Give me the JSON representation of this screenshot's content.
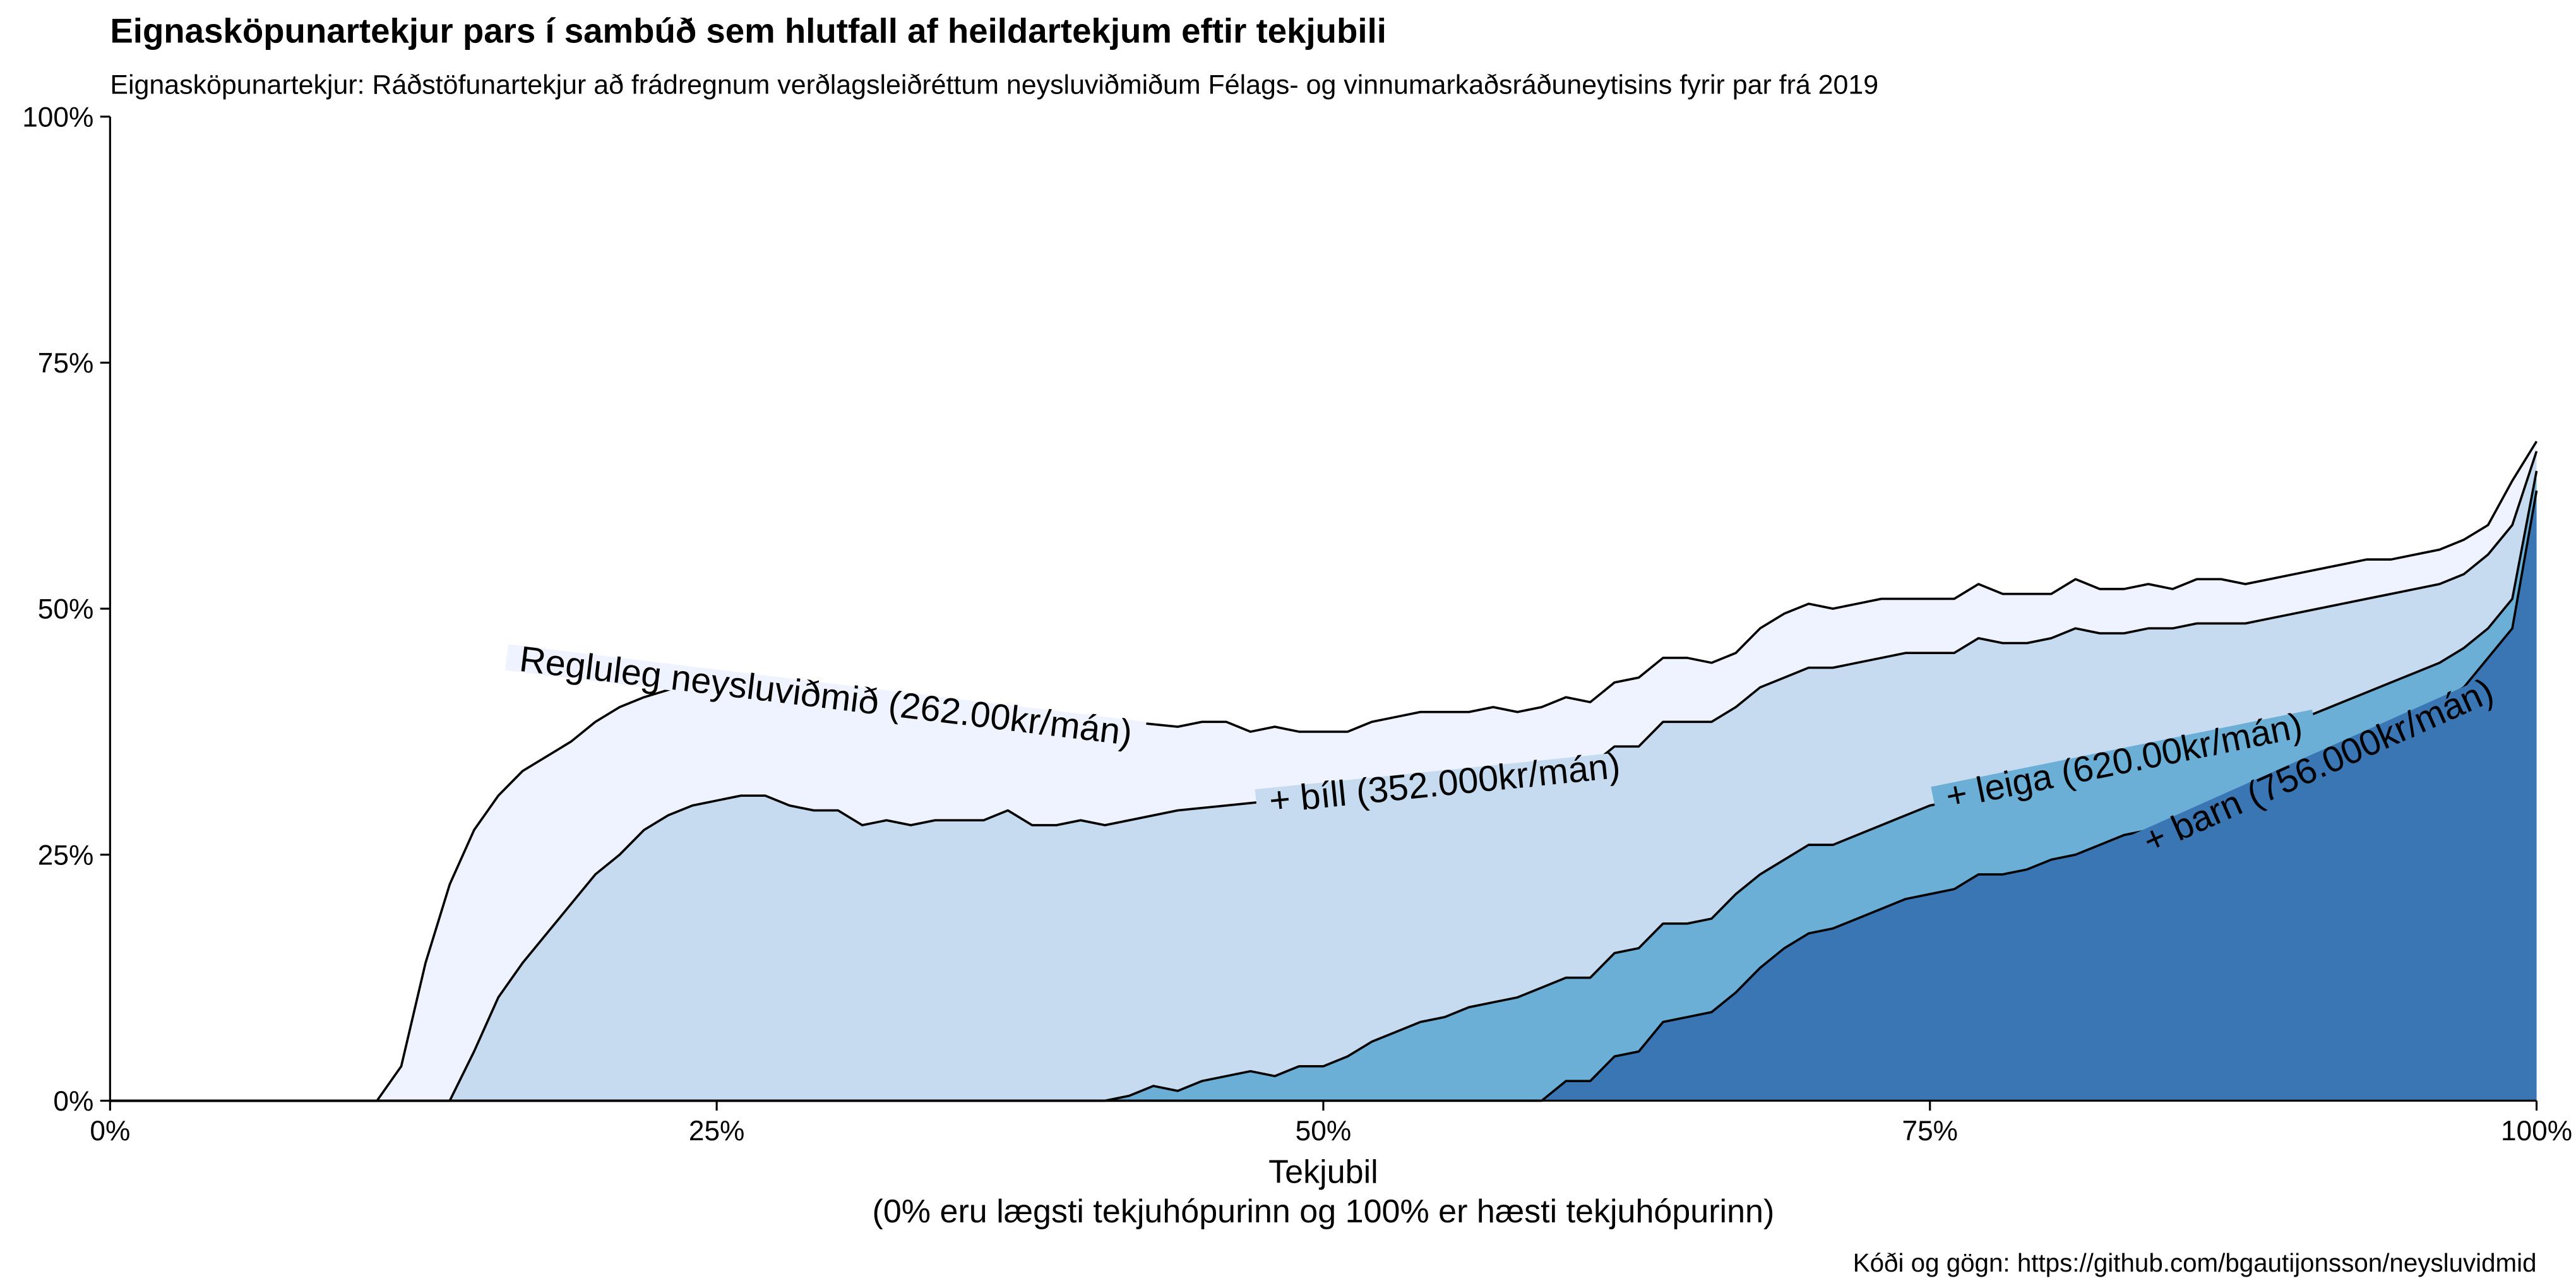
{
  "chart_data": {
    "type": "area",
    "stacked": true,
    "title": "Eignasköpunartekjur pars í sambúð sem hlutfall af heildartekjum eftir tekjubili",
    "subtitle": "Eignasköpunartekjur: Ráðstöfunartekjur að frádregnum verðlagsleiðréttum neysluviðmiðum Félags- og vinnumarkaðsráðuneytisins fyrir par frá 2019",
    "xlabel": "Tekjubil",
    "xlabel_note": "(0% eru lægsti tekjuhópurinn og 100% er hæsti tekjuhópurinn)",
    "caption": "Kóði og gögn: https://github.com/bgautijonsson/neysluvidmid",
    "xlim": [
      0,
      100
    ],
    "ylim": [
      0,
      100
    ],
    "x_ticks": [
      0,
      25,
      50,
      75,
      100
    ],
    "y_ticks": [
      0,
      25,
      50,
      75,
      100
    ],
    "x_tick_labels": [
      "0%",
      "25%",
      "50%",
      "75%",
      "100%"
    ],
    "y_tick_labels": [
      "0%",
      "25%",
      "50%",
      "75%",
      "100%"
    ],
    "grid": false,
    "legend": "none",
    "series": [
      {
        "name": "Regluleg neysluviðmið (262.00kr/mán)",
        "color": "#eff3ff",
        "label_at": 29.5,
        "points": [
          [
            0,
            0
          ],
          [
            11,
            0
          ],
          [
            12,
            3.5
          ],
          [
            13,
            14
          ],
          [
            14,
            22
          ],
          [
            15,
            27.5
          ],
          [
            16,
            31
          ],
          [
            17,
            33.5
          ],
          [
            19,
            36.5
          ],
          [
            20,
            38.5
          ],
          [
            21,
            40
          ],
          [
            22,
            41
          ],
          [
            24,
            42.5
          ],
          [
            26,
            42.5
          ],
          [
            28,
            41.5
          ],
          [
            30,
            41
          ],
          [
            32,
            40.5
          ],
          [
            34,
            40
          ],
          [
            36,
            39.5
          ],
          [
            38,
            39
          ],
          [
            40,
            39
          ],
          [
            42,
            38.5
          ],
          [
            44,
            38
          ],
          [
            45,
            38.5
          ],
          [
            46,
            38.5
          ],
          [
            47,
            37.5
          ],
          [
            48,
            38
          ],
          [
            49,
            37.5
          ],
          [
            50,
            37.5
          ],
          [
            51,
            37.5
          ],
          [
            52,
            38.5
          ],
          [
            53,
            39
          ],
          [
            54,
            39.5
          ],
          [
            55,
            39.5
          ],
          [
            56,
            39.5
          ],
          [
            57,
            40
          ],
          [
            58,
            39.5
          ],
          [
            59,
            40
          ],
          [
            60,
            41
          ],
          [
            61,
            40.5
          ],
          [
            62,
            42.5
          ],
          [
            63,
            43
          ],
          [
            64,
            45
          ],
          [
            65,
            45
          ],
          [
            66,
            44.5
          ],
          [
            67,
            45.5
          ],
          [
            68,
            48
          ],
          [
            69,
            49.5
          ],
          [
            70,
            50.5
          ],
          [
            71,
            50
          ],
          [
            72,
            50.5
          ],
          [
            73,
            51
          ],
          [
            75,
            51
          ],
          [
            76,
            51
          ],
          [
            77,
            52.5
          ],
          [
            78,
            51.5
          ],
          [
            79,
            51.5
          ],
          [
            80,
            51.5
          ],
          [
            81,
            53
          ],
          [
            82,
            52
          ],
          [
            83,
            52
          ],
          [
            84,
            52.5
          ],
          [
            85,
            52
          ],
          [
            86,
            53
          ],
          [
            87,
            53
          ],
          [
            88,
            52.5
          ],
          [
            89,
            53
          ],
          [
            90,
            53.5
          ],
          [
            91,
            54
          ],
          [
            92,
            54.5
          ],
          [
            93,
            55
          ],
          [
            94,
            55
          ],
          [
            95,
            55.5
          ],
          [
            96,
            56
          ],
          [
            97,
            57
          ],
          [
            98,
            58.5
          ],
          [
            99,
            63
          ],
          [
            100,
            67
          ]
        ]
      },
      {
        "name": "+ bíll (352.000kr/mán)",
        "color": "#c6dbef",
        "label_at": 55,
        "points": [
          [
            0,
            0
          ],
          [
            14,
            0
          ],
          [
            15,
            5
          ],
          [
            16,
            10.5
          ],
          [
            17,
            14
          ],
          [
            18,
            17
          ],
          [
            19,
            20
          ],
          [
            20,
            23
          ],
          [
            21,
            25
          ],
          [
            22,
            27.5
          ],
          [
            23,
            29
          ],
          [
            24,
            30
          ],
          [
            25,
            30.5
          ],
          [
            26,
            31
          ],
          [
            27,
            31
          ],
          [
            28,
            30
          ],
          [
            29,
            29.5
          ],
          [
            30,
            29.5
          ],
          [
            31,
            28
          ],
          [
            32,
            28.5
          ],
          [
            33,
            28
          ],
          [
            34,
            28.5
          ],
          [
            35,
            28.5
          ],
          [
            36,
            28.5
          ],
          [
            37,
            29.5
          ],
          [
            38,
            28
          ],
          [
            39,
            28
          ],
          [
            40,
            28.5
          ],
          [
            41,
            28
          ],
          [
            42,
            28.5
          ],
          [
            44,
            29.5
          ],
          [
            46,
            30
          ],
          [
            48,
            30.5
          ],
          [
            50,
            31
          ],
          [
            52,
            31.5
          ],
          [
            54,
            32
          ],
          [
            56,
            32.5
          ],
          [
            58,
            33
          ],
          [
            60,
            34.5
          ],
          [
            61,
            34
          ],
          [
            62,
            36
          ],
          [
            63,
            36
          ],
          [
            64,
            38.5
          ],
          [
            65,
            38.5
          ],
          [
            66,
            38.5
          ],
          [
            67,
            40
          ],
          [
            68,
            42
          ],
          [
            69,
            43
          ],
          [
            70,
            44
          ],
          [
            71,
            44
          ],
          [
            72,
            44.5
          ],
          [
            73,
            45
          ],
          [
            74,
            45.5
          ],
          [
            75,
            45.5
          ],
          [
            76,
            45.5
          ],
          [
            77,
            47
          ],
          [
            78,
            46.5
          ],
          [
            79,
            46.5
          ],
          [
            80,
            47
          ],
          [
            81,
            48
          ],
          [
            82,
            47.5
          ],
          [
            83,
            47.5
          ],
          [
            84,
            48
          ],
          [
            85,
            48
          ],
          [
            86,
            48.5
          ],
          [
            87,
            48.5
          ],
          [
            88,
            48.5
          ],
          [
            89,
            49
          ],
          [
            90,
            49.5
          ],
          [
            91,
            50
          ],
          [
            92,
            50.5
          ],
          [
            93,
            51
          ],
          [
            94,
            51.5
          ],
          [
            95,
            52
          ],
          [
            96,
            52.5
          ],
          [
            97,
            53.5
          ],
          [
            98,
            55.5
          ],
          [
            99,
            58.5
          ],
          [
            100,
            66
          ]
        ]
      },
      {
        "name": "+ leiga (620.00kr/mán)",
        "color": "#6baed6",
        "label_at": 83,
        "points": [
          [
            0,
            0
          ],
          [
            41,
            0
          ],
          [
            42,
            0.5
          ],
          [
            43,
            1.5
          ],
          [
            44,
            1
          ],
          [
            45,
            2
          ],
          [
            46,
            2.5
          ],
          [
            47,
            3
          ],
          [
            48,
            2.5
          ],
          [
            49,
            3.5
          ],
          [
            50,
            3.5
          ],
          [
            51,
            4.5
          ],
          [
            52,
            6
          ],
          [
            53,
            7
          ],
          [
            54,
            8
          ],
          [
            55,
            8.5
          ],
          [
            56,
            9.5
          ],
          [
            57,
            10
          ],
          [
            58,
            10.5
          ],
          [
            59,
            11.5
          ],
          [
            60,
            12.5
          ],
          [
            61,
            12.5
          ],
          [
            62,
            15
          ],
          [
            63,
            15.5
          ],
          [
            64,
            18
          ],
          [
            65,
            18
          ],
          [
            66,
            18.5
          ],
          [
            67,
            21
          ],
          [
            68,
            23
          ],
          [
            69,
            24.5
          ],
          [
            70,
            26
          ],
          [
            71,
            26
          ],
          [
            72,
            27
          ],
          [
            73,
            28
          ],
          [
            74,
            29
          ],
          [
            75,
            30
          ],
          [
            76,
            30.5
          ],
          [
            77,
            31.5
          ],
          [
            78,
            32
          ],
          [
            79,
            32.5
          ],
          [
            80,
            33
          ],
          [
            81,
            33.5
          ],
          [
            82,
            34
          ],
          [
            83,
            34.5
          ],
          [
            84,
            35
          ],
          [
            85,
            35.5
          ],
          [
            86,
            36
          ],
          [
            87,
            36.5
          ],
          [
            88,
            37
          ],
          [
            89,
            37.5
          ],
          [
            90,
            38.5
          ],
          [
            91,
            39.5
          ],
          [
            92,
            40.5
          ],
          [
            93,
            41.5
          ],
          [
            94,
            42.5
          ],
          [
            95,
            43.5
          ],
          [
            96,
            44.5
          ],
          [
            97,
            46
          ],
          [
            98,
            48
          ],
          [
            99,
            51
          ],
          [
            100,
            64
          ]
        ]
      },
      {
        "name": "+ barn (756.000kr/mán)",
        "color": "#3a75b4",
        "label_at": 91,
        "points": [
          [
            0,
            0
          ],
          [
            59,
            0
          ],
          [
            60,
            2
          ],
          [
            61,
            2
          ],
          [
            62,
            4.5
          ],
          [
            63,
            5
          ],
          [
            64,
            8
          ],
          [
            65,
            8.5
          ],
          [
            66,
            9
          ],
          [
            67,
            11
          ],
          [
            68,
            13.5
          ],
          [
            69,
            15.5
          ],
          [
            70,
            17
          ],
          [
            71,
            17.5
          ],
          [
            72,
            18.5
          ],
          [
            73,
            19.5
          ],
          [
            74,
            20.5
          ],
          [
            75,
            21
          ],
          [
            76,
            21.5
          ],
          [
            77,
            23
          ],
          [
            78,
            23
          ],
          [
            79,
            23.5
          ],
          [
            80,
            24.5
          ],
          [
            81,
            25
          ],
          [
            82,
            26
          ],
          [
            83,
            27
          ],
          [
            84,
            27.5
          ],
          [
            85,
            28.5
          ],
          [
            86,
            29.5
          ],
          [
            87,
            30
          ],
          [
            88,
            31
          ],
          [
            89,
            32
          ],
          [
            90,
            33
          ],
          [
            91,
            34
          ],
          [
            92,
            35
          ],
          [
            93,
            36.5
          ],
          [
            94,
            37.5
          ],
          [
            95,
            39
          ],
          [
            96,
            40.5
          ],
          [
            97,
            42
          ],
          [
            98,
            45
          ],
          [
            99,
            48
          ],
          [
            100,
            62
          ]
        ]
      }
    ]
  }
}
